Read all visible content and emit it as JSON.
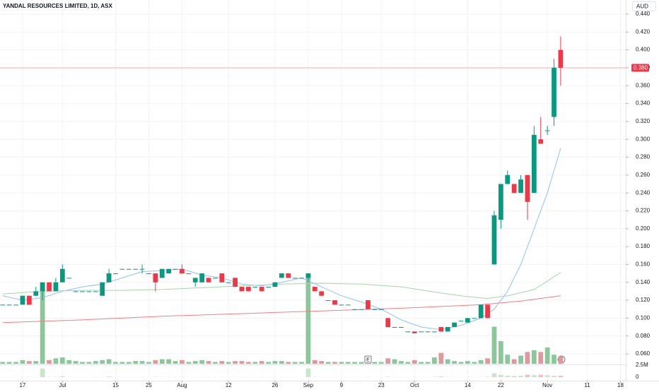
{
  "chart_data": {
    "type": "candlestick",
    "title": "YANDAL RESOURCES LIMITED, 1D, ASX",
    "currency": "AUD",
    "up_color": "#089981",
    "down_color": "#f23645",
    "volume_up_color": "#8cc79a",
    "volume_down_color": "#e0989e",
    "grid": true,
    "xlim": [
      -0.4,
      93.8
    ],
    "xticks": [
      {
        "value": 3,
        "label": "17"
      },
      {
        "value": 9,
        "label": "Jul"
      },
      {
        "value": 17,
        "label": "15"
      },
      {
        "value": 22,
        "label": "25"
      },
      {
        "value": 27,
        "label": "Aug"
      },
      {
        "value": 34,
        "label": "12"
      },
      {
        "value": 41,
        "label": "26"
      },
      {
        "value": 46,
        "label": "Sep"
      },
      {
        "value": 51,
        "label": "9"
      },
      {
        "value": 57,
        "label": "23"
      },
      {
        "value": 62,
        "label": "Oct"
      },
      {
        "value": 70,
        "label": "14"
      },
      {
        "value": 75,
        "label": "22"
      },
      {
        "value": 82,
        "label": "Nov"
      },
      {
        "value": 88,
        "label": "11"
      },
      {
        "value": 93,
        "label": "18"
      }
    ],
    "ylim": [
      0.06,
      0.44
    ],
    "yticks": [
      {
        "value": 0.06,
        "label": "0.060"
      },
      {
        "value": 0.08,
        "label": "0.080"
      },
      {
        "value": 0.1,
        "label": "0.100"
      },
      {
        "value": 0.12,
        "label": "0.120"
      },
      {
        "value": 0.14,
        "label": "0.140"
      },
      {
        "value": 0.16,
        "label": "0.160"
      },
      {
        "value": 0.18,
        "label": "0.180"
      },
      {
        "value": 0.2,
        "label": "0.200"
      },
      {
        "value": 0.22,
        "label": "0.220"
      },
      {
        "value": 0.24,
        "label": "0.240"
      },
      {
        "value": 0.26,
        "label": "0.260"
      },
      {
        "value": 0.28,
        "label": "0.280"
      },
      {
        "value": 0.3,
        "label": "0.300"
      },
      {
        "value": 0.32,
        "label": "0.320"
      },
      {
        "value": 0.34,
        "label": "0.340"
      },
      {
        "value": 0.36,
        "label": "0.360"
      },
      {
        "value": 0.38,
        "label": "0.380"
      },
      {
        "value": 0.4,
        "label": "0.400"
      },
      {
        "value": 0.42,
        "label": "0.420"
      },
      {
        "value": 0.44,
        "label": "0.440"
      }
    ],
    "last_price": {
      "value": 0.38,
      "label": "0.380"
    },
    "event_marker": "E",
    "candles": [
      [
        0.115,
        0.115,
        0.115,
        0.115
      ],
      [
        0.115,
        0.115,
        0.115,
        0.115
      ],
      [
        0.115,
        0.115,
        0.115,
        0.115
      ],
      [
        0.115,
        0.125,
        0.115,
        0.125
      ],
      [
        0.125,
        0.125,
        0.115,
        0.115
      ],
      [
        0.125,
        0.135,
        0.125,
        0.13
      ],
      [
        0.13,
        0.14,
        0.12,
        0.14
      ],
      [
        0.14,
        0.14,
        0.13,
        0.13
      ],
      [
        0.13,
        0.145,
        0.13,
        0.14
      ],
      [
        0.14,
        0.16,
        0.14,
        0.155
      ],
      [
        0.145,
        0.145,
        0.145,
        0.145
      ],
      [
        0.13,
        0.13,
        0.13,
        0.13
      ],
      [
        0.13,
        0.13,
        0.13,
        0.13
      ],
      [
        0.13,
        0.13,
        0.13,
        0.13
      ],
      [
        0.13,
        0.13,
        0.13,
        0.13
      ],
      [
        0.125,
        0.14,
        0.125,
        0.14
      ],
      [
        0.14,
        0.155,
        0.14,
        0.15
      ],
      [
        0.15,
        0.15,
        0.15,
        0.15
      ],
      [
        0.155,
        0.155,
        0.155,
        0.155
      ],
      [
        0.155,
        0.155,
        0.155,
        0.155
      ],
      [
        0.155,
        0.155,
        0.155,
        0.155
      ],
      [
        0.155,
        0.16,
        0.15,
        0.155
      ],
      [
        0.15,
        0.15,
        0.15,
        0.15
      ],
      [
        0.15,
        0.15,
        0.13,
        0.14
      ],
      [
        0.145,
        0.155,
        0.145,
        0.155
      ],
      [
        0.15,
        0.155,
        0.15,
        0.155
      ],
      [
        0.155,
        0.155,
        0.155,
        0.155
      ],
      [
        0.155,
        0.16,
        0.15,
        0.15
      ],
      [
        0.15,
        0.15,
        0.15,
        0.15
      ],
      [
        0.14,
        0.145,
        0.135,
        0.145
      ],
      [
        0.14,
        0.15,
        0.14,
        0.15
      ],
      [
        0.145,
        0.145,
        0.14,
        0.14
      ],
      [
        0.145,
        0.145,
        0.145,
        0.145
      ],
      [
        0.15,
        0.15,
        0.14,
        0.14
      ],
      [
        0.14,
        0.14,
        0.14,
        0.14
      ],
      [
        0.145,
        0.145,
        0.135,
        0.135
      ],
      [
        0.135,
        0.135,
        0.13,
        0.13
      ],
      [
        0.135,
        0.135,
        0.13,
        0.13
      ],
      [
        0.135,
        0.135,
        0.135,
        0.135
      ],
      [
        0.135,
        0.135,
        0.13,
        0.13
      ],
      [
        0.135,
        0.135,
        0.135,
        0.135
      ],
      [
        0.135,
        0.14,
        0.135,
        0.14
      ],
      [
        0.145,
        0.15,
        0.145,
        0.15
      ],
      [
        0.15,
        0.15,
        0.145,
        0.145
      ],
      [
        0.145,
        0.145,
        0.145,
        0.145
      ],
      [
        0.145,
        0.145,
        0.145,
        0.145
      ],
      [
        0.145,
        0.15,
        0.14,
        0.15
      ],
      [
        0.135,
        0.135,
        0.13,
        0.13
      ],
      [
        0.13,
        0.13,
        0.125,
        0.125
      ],
      [
        0.12,
        0.12,
        0.12,
        0.12
      ],
      [
        0.12,
        0.12,
        0.115,
        0.115
      ],
      [
        0.115,
        0.115,
        0.115,
        0.115
      ],
      [
        0.115,
        0.115,
        0.115,
        0.115
      ],
      [
        0.11,
        0.11,
        0.11,
        0.11
      ],
      [
        0.11,
        0.11,
        0.11,
        0.11
      ],
      [
        0.12,
        0.12,
        0.11,
        0.11
      ],
      [
        0.11,
        0.11,
        0.11,
        0.11
      ],
      [
        0.11,
        0.11,
        0.11,
        0.11
      ],
      [
        0.1,
        0.1,
        0.09,
        0.09
      ],
      [
        0.09,
        0.09,
        0.09,
        0.09
      ],
      [
        0.09,
        0.09,
        0.09,
        0.09
      ],
      [
        0.085,
        0.085,
        0.085,
        0.085
      ],
      [
        0.085,
        0.085,
        0.083,
        0.083
      ],
      [
        0.085,
        0.085,
        0.085,
        0.085
      ],
      [
        0.085,
        0.085,
        0.085,
        0.085
      ],
      [
        0.085,
        0.085,
        0.085,
        0.085
      ],
      [
        0.09,
        0.09,
        0.085,
        0.085
      ],
      [
        0.085,
        0.09,
        0.085,
        0.09
      ],
      [
        0.09,
        0.095,
        0.09,
        0.095
      ],
      [
        0.097,
        0.097,
        0.097,
        0.097
      ],
      [
        0.095,
        0.1,
        0.095,
        0.1
      ],
      [
        0.1,
        0.1,
        0.1,
        0.1
      ],
      [
        0.1,
        0.115,
        0.1,
        0.115
      ],
      [
        0.115,
        0.115,
        0.1,
        0.1
      ],
      [
        0.16,
        0.22,
        0.16,
        0.215
      ],
      [
        0.21,
        0.25,
        0.2,
        0.25
      ],
      [
        0.25,
        0.265,
        0.25,
        0.26
      ],
      [
        0.25,
        0.25,
        0.24,
        0.24
      ],
      [
        0.24,
        0.26,
        0.24,
        0.255
      ],
      [
        0.26,
        0.26,
        0.21,
        0.23
      ],
      [
        0.24,
        0.315,
        0.24,
        0.305
      ],
      [
        0.3,
        0.325,
        0.295,
        0.295
      ],
      [
        0.31,
        0.315,
        0.305,
        0.31
      ],
      [
        0.325,
        0.39,
        0.315,
        0.38
      ],
      [
        0.4,
        0.415,
        0.36,
        0.38
      ]
    ],
    "vlim": [
      0,
      10
    ],
    "volume": [
      0.2,
      0.2,
      0.2,
      0.4,
      0.3,
      0.3,
      9,
      0.4,
      0.6,
      0.7,
      0.4,
      0.3,
      0.2,
      0.2,
      0.3,
      0.4,
      0.5,
      0.2,
      0.2,
      0.2,
      0.3,
      0.3,
      0.2,
      0.4,
      0.5,
      0.5,
      0.3,
      0.4,
      0.2,
      0.3,
      0.4,
      0.3,
      0.2,
      0.3,
      0.2,
      0.3,
      0.3,
      0.2,
      0.2,
      0.3,
      0.2,
      0.3,
      0.3,
      0.2,
      0.2,
      0.2,
      10,
      0.4,
      0.3,
      0.2,
      0.2,
      0.2,
      0.2,
      0.2,
      0.2,
      0.3,
      0.2,
      0.2,
      0.6,
      0.5,
      0.3,
      0.2,
      0.4,
      0.2,
      0.2,
      0.7,
      1.2,
      0.5,
      0.3,
      0.2,
      0.3,
      0.2,
      0.4,
      0.6,
      4.1,
      2.5,
      1,
      0.5,
      0.9,
      1.3,
      1.5,
      1.3,
      1.8,
      1,
      0.8
    ],
    "lower_pane": {
      "ylim": [
        0,
        2500000
      ],
      "yticks": [
        {
          "value": 2500000,
          "label": "2.5M"
        },
        0
      ],
      "values": [
        20000,
        20000,
        20000,
        40000,
        30000,
        30000,
        1800000,
        40000,
        60000,
        200000,
        40000,
        30000,
        20000,
        20000,
        30000,
        40000,
        150000,
        20000,
        20000,
        20000,
        30000,
        30000,
        20000,
        40000,
        50000,
        50000,
        30000,
        40000,
        20000,
        30000,
        40000,
        30000,
        20000,
        30000,
        20000,
        30000,
        30000,
        20000,
        20000,
        30000,
        20000,
        30000,
        30000,
        20000,
        20000,
        20000,
        1800000,
        40000,
        30000,
        20000,
        20000,
        20000,
        20000,
        20000,
        20000,
        30000,
        20000,
        20000,
        60000,
        50000,
        30000,
        20000,
        40000,
        20000,
        20000,
        70000,
        120000,
        50000,
        30000,
        20000,
        30000,
        20000,
        40000,
        60000,
        800000,
        500000,
        300000,
        200000,
        300000,
        500000,
        400000,
        500000,
        400000,
        300000,
        300000
      ]
    },
    "lines": [
      {
        "color": "#90bff9",
        "x": [
          0,
          3,
          6,
          9,
          12,
          15,
          18,
          21,
          24,
          27,
          30,
          33,
          36,
          39,
          42,
          45,
          48,
          51,
          54,
          57,
          60,
          63,
          66,
          69,
          72,
          74,
          76,
          78,
          80,
          82,
          84
        ],
        "values": [
          0.125,
          0.12,
          0.123,
          0.13,
          0.135,
          0.138,
          0.145,
          0.152,
          0.153,
          0.155,
          0.148,
          0.145,
          0.138,
          0.136,
          0.14,
          0.145,
          0.135,
          0.125,
          0.118,
          0.11,
          0.098,
          0.09,
          0.087,
          0.092,
          0.1,
          0.11,
          0.13,
          0.16,
          0.2,
          0.24,
          0.29
        ]
      },
      {
        "color": "#a5d6a7",
        "x": [
          0,
          6,
          12,
          18,
          24,
          30,
          36,
          42,
          48,
          54,
          60,
          66,
          70,
          73,
          76,
          80,
          84
        ],
        "values": [
          0.127,
          0.13,
          0.131,
          0.131,
          0.132,
          0.134,
          0.136,
          0.138,
          0.139,
          0.138,
          0.135,
          0.128,
          0.124,
          0.122,
          0.125,
          0.132,
          0.151
        ]
      },
      {
        "color": "#f77c80",
        "x": [
          0,
          12,
          24,
          36,
          48,
          60,
          72,
          78,
          84
        ],
        "values": [
          0.095,
          0.098,
          0.102,
          0.105,
          0.108,
          0.111,
          0.115,
          0.119,
          0.125
        ]
      }
    ]
  }
}
